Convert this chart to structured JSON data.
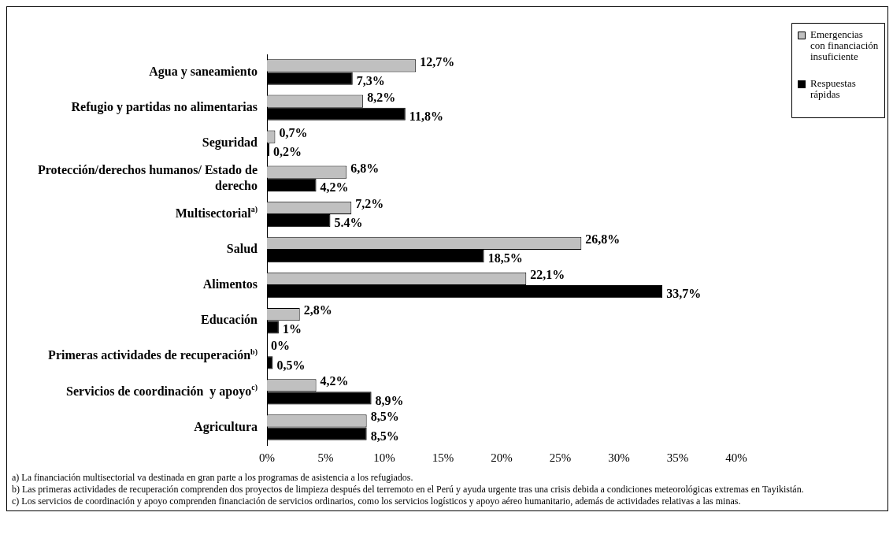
{
  "chart_data": {
    "type": "bar",
    "orientation": "horizontal",
    "categories": [
      "Agua y saneamiento",
      "Refugio y partidas no alimentarias",
      "Seguridad",
      "Protección/derechos humanos/ Estado de derecho",
      "Multisectorial$^{a)}$",
      "Salud",
      "Alimentos",
      "Educación",
      "Primeras actividades de recuperación$^{b)}$",
      "Servicios de coordinación  y apoyo$^{c)}$",
      "Agricultura"
    ],
    "series": [
      {
        "name": "Emergencias con financiación insuficiente",
        "color": "#c0c0c0",
        "values": [
          12.7,
          8.2,
          0.7,
          6.8,
          7.2,
          26.8,
          22.1,
          2.8,
          0,
          4.2,
          8.5
        ],
        "value_labels": [
          "12,7%",
          "8,2%",
          "0,7%",
          "6,8%",
          "7,2%",
          "26,8%",
          "22,1%",
          "2,8%",
          "0%",
          "4,2%",
          "8,5%"
        ]
      },
      {
        "name": "Respuestas rápidas",
        "color": "#000000",
        "values": [
          7.3,
          11.8,
          0.2,
          4.2,
          5.4,
          18.5,
          33.7,
          1,
          0.5,
          8.9,
          8.5
        ],
        "value_labels": [
          "7,3%",
          "11,8%",
          "0,2%",
          "4,2%",
          "5.4%",
          "18,5%",
          "33,7%",
          "1%",
          "0,5%",
          "8,9%",
          "8,5%"
        ]
      }
    ],
    "xlim": [
      0,
      40
    ],
    "xticks": [
      {
        "value": 0,
        "label": "0%"
      },
      {
        "value": 5,
        "label": "5%"
      },
      {
        "value": 10,
        "label": "10%"
      },
      {
        "value": 15,
        "label": "15%"
      },
      {
        "value": 20,
        "label": "20%"
      },
      {
        "value": 25,
        "label": "25%"
      },
      {
        "value": 30,
        "label": "30%"
      },
      {
        "value": 35,
        "label": "35%"
      },
      {
        "value": 40,
        "label": "40%"
      }
    ],
    "grid": false,
    "legend": "top right",
    "annotations": [
      "a) La financiación multisectorial va destinada en gran parte a los programas de asistencia a los refugiados.",
      "b) Las primeras actividades de recuperación comprenden dos proyectos de limpieza después del terremoto en el Perú y ayuda urgente tras una crisis debida a condiciones meteorológicas extremas en Tayikistán.",
      "c) Los servicios de coordinación y apoyo comprenden financiación de servicios ordinarios, como los servicios logísticos y apoyo aéreo humanitario, además de actividades relativas a las minas."
    ]
  }
}
